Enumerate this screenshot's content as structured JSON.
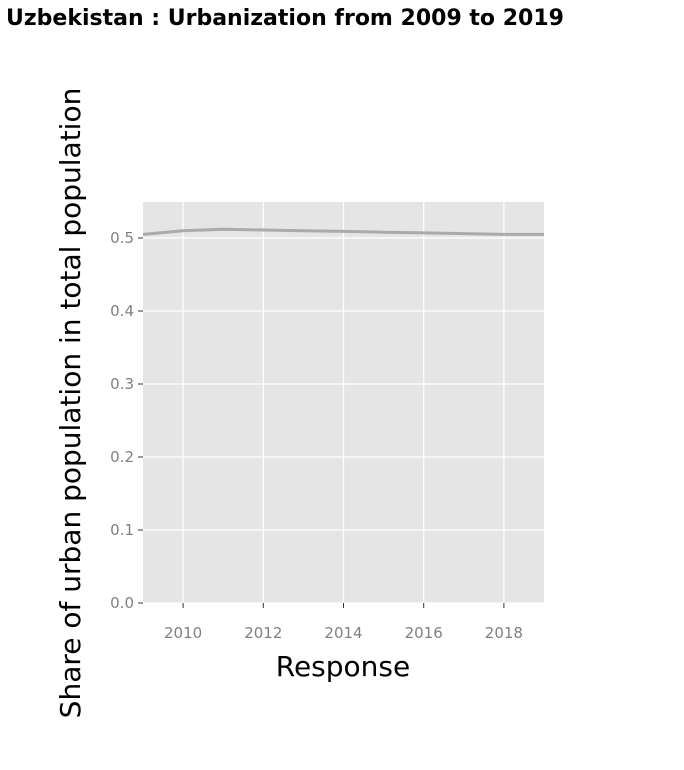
{
  "chart_data": {
    "type": "line",
    "title": "Uzbekistan : Urbanization from 2009 to 2019",
    "xlabel": "Response",
    "ylabel": "Share of urban population in total population",
    "x": [
      2009,
      2010,
      2011,
      2012,
      2013,
      2014,
      2015,
      2016,
      2017,
      2018,
      2019
    ],
    "series": [
      {
        "values": [
          0.505,
          0.51,
          0.512,
          0.511,
          0.51,
          0.509,
          0.508,
          0.507,
          0.506,
          0.505,
          0.505
        ]
      }
    ],
    "xlim": [
      2009,
      2019
    ],
    "ylim": [
      0,
      0.5
    ],
    "xticks": [
      "2010",
      "2012",
      "2014",
      "2016",
      "2018"
    ],
    "yticks": [
      "0.0",
      "0.1",
      "0.2",
      "0.3",
      "0.4",
      "0.5"
    ],
    "grid": true,
    "colors": {
      "panel": "#e5e5e5",
      "grid": "#ffffff",
      "line": "#aaaaaa",
      "tick_text": "#808080"
    }
  }
}
